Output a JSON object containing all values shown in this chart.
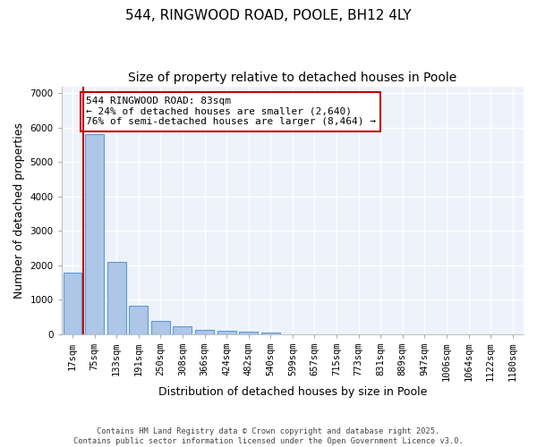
{
  "title": "544, RINGWOOD ROAD, POOLE, BH12 4LY",
  "subtitle": "Size of property relative to detached houses in Poole",
  "xlabel": "Distribution of detached houses by size in Poole",
  "ylabel": "Number of detached properties",
  "categories": [
    "17sqm",
    "75sqm",
    "133sqm",
    "191sqm",
    "250sqm",
    "308sqm",
    "366sqm",
    "424sqm",
    "482sqm",
    "540sqm",
    "599sqm",
    "657sqm",
    "715sqm",
    "773sqm",
    "831sqm",
    "889sqm",
    "947sqm",
    "1006sqm",
    "1064sqm",
    "1122sqm",
    "1180sqm"
  ],
  "values": [
    1780,
    5820,
    2090,
    820,
    380,
    220,
    130,
    90,
    70,
    50,
    0,
    0,
    0,
    0,
    0,
    0,
    0,
    0,
    0,
    0,
    0
  ],
  "bar_color": "#aec6e8",
  "bar_edge_color": "#5b9bd5",
  "property_line_color": "#c00000",
  "annotation_text": "544 RINGWOOD ROAD: 83sqm\n← 24% of detached houses are smaller (2,640)\n76% of semi-detached houses are larger (8,464) →",
  "annotation_box_color": "#ffffff",
  "annotation_box_edge": "#c00000",
  "ylim": [
    0,
    7200
  ],
  "yticks": [
    0,
    1000,
    2000,
    3000,
    4000,
    5000,
    6000,
    7000
  ],
  "background_color": "#eef2fb",
  "grid_color": "#ffffff",
  "footer": "Contains HM Land Registry data © Crown copyright and database right 2025.\nContains public sector information licensed under the Open Government Licence v3.0.",
  "title_fontsize": 11,
  "subtitle_fontsize": 10,
  "axis_label_fontsize": 9,
  "tick_fontsize": 7.5,
  "annotation_fontsize": 8
}
